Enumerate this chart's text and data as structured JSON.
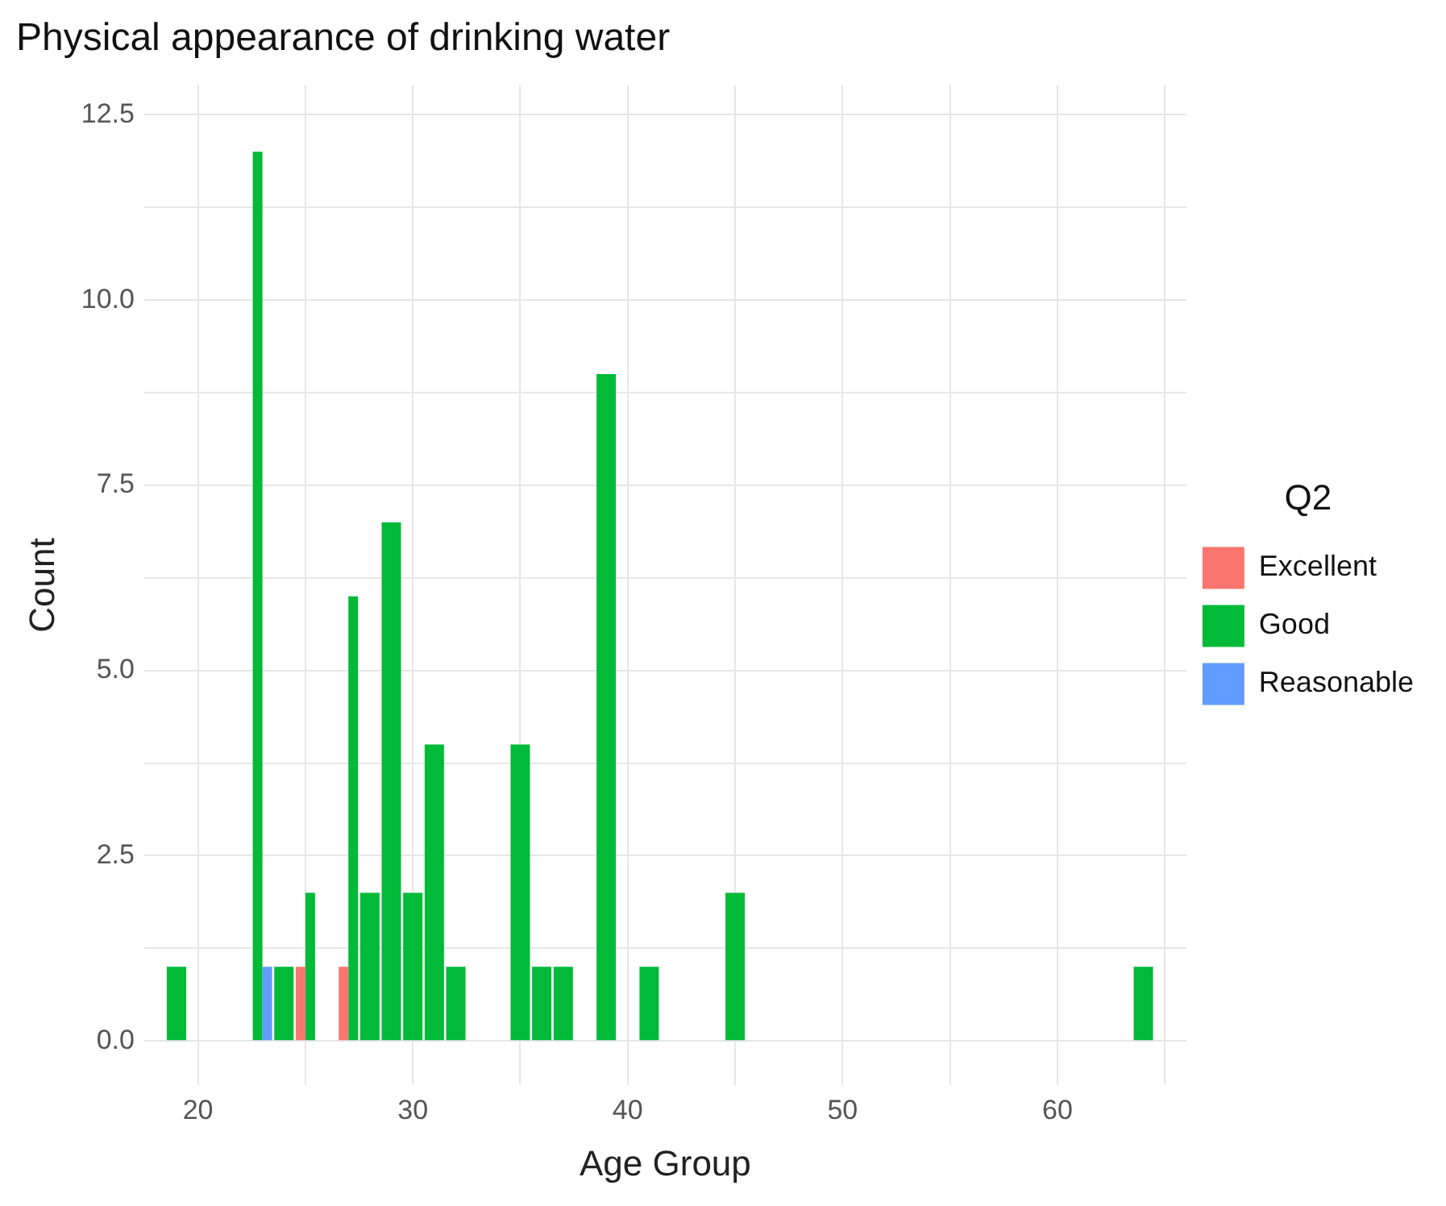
{
  "chart_data": {
    "type": "bar",
    "title": "Physical appearance of drinking water",
    "xlabel": "Age Group",
    "ylabel": "Count",
    "legend_title": "Q2",
    "x": [
      19,
      23,
      24,
      25,
      27,
      28,
      29,
      30,
      31,
      32,
      35,
      36,
      37,
      39,
      41,
      45,
      64
    ],
    "series": [
      {
        "name": "Excellent",
        "color": "#f8766d",
        "values": [
          null,
          null,
          null,
          1,
          1,
          null,
          null,
          null,
          null,
          null,
          null,
          null,
          null,
          null,
          null,
          null,
          null
        ]
      },
      {
        "name": "Good",
        "color": "#00ba38",
        "values": [
          1,
          12,
          1,
          2,
          6,
          2,
          7,
          2,
          4,
          1,
          4,
          1,
          1,
          9,
          1,
          2,
          1
        ]
      },
      {
        "name": "Reasonable",
        "color": "#619cff",
        "values": [
          null,
          1,
          null,
          null,
          null,
          null,
          null,
          null,
          null,
          null,
          null,
          null,
          null,
          null,
          null,
          null,
          null
        ]
      }
    ],
    "xlim": [
      17.5,
      66
    ],
    "ylim": [
      -0.6,
      12.9
    ],
    "xticks": [
      20,
      {
        "value": 25,
        "label": null
      },
      30,
      {
        "value": 35,
        "label": null
      },
      40,
      {
        "value": 45,
        "label": null
      },
      50,
      {
        "value": 55,
        "label": null
      },
      60,
      {
        "value": 65,
        "label": null
      }
    ],
    "yticks": [
      {
        "value": 0,
        "label": "0.0"
      },
      {
        "value": 1.25,
        "label": null
      },
      {
        "value": 2.5,
        "label": "2.5"
      },
      {
        "value": 3.75,
        "label": null
      },
      {
        "value": 5,
        "label": "5.0"
      },
      {
        "value": 6.25,
        "label": null
      },
      {
        "value": 7.5,
        "label": "7.5"
      },
      {
        "value": 8.75,
        "label": null
      },
      {
        "value": 10,
        "label": "10.0"
      },
      {
        "value": 11.25,
        "label": null
      },
      {
        "value": 12.5,
        "label": "12.5"
      }
    ],
    "grid": true,
    "legend": "right"
  }
}
